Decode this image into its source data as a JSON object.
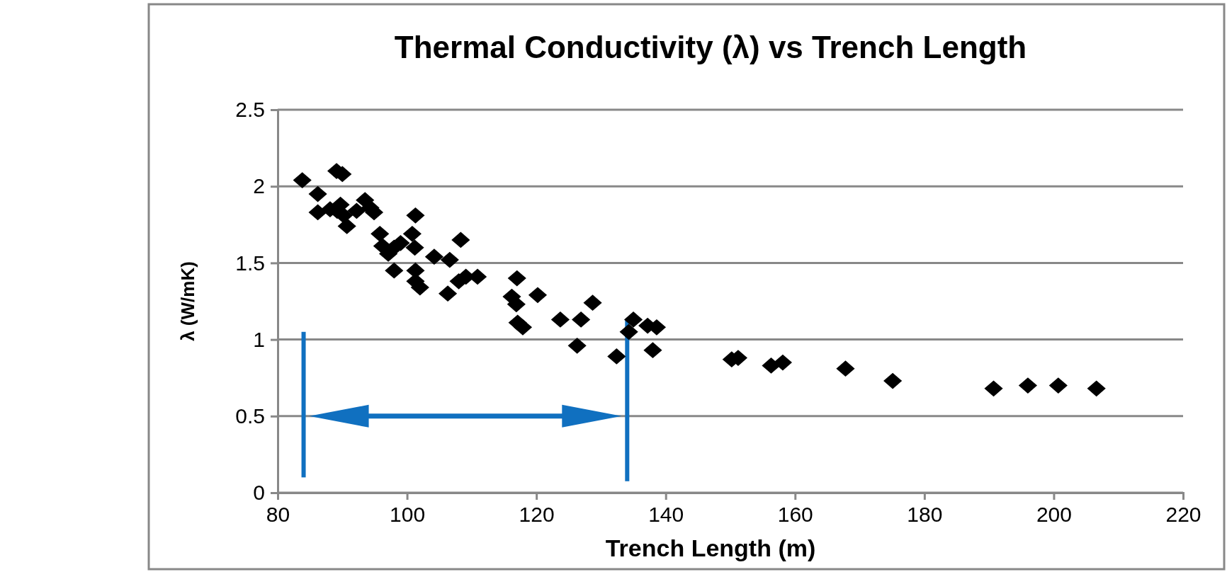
{
  "chart_data": {
    "type": "scatter",
    "title": "Thermal Conductivity (λ) vs Trench Length",
    "xlabel": "Trench Length (m)",
    "ylabel": "λ (W/mK)",
    "x": [
      83.8,
      86.2,
      86.2,
      88.1,
      89.1,
      90.0,
      89.7,
      89.2,
      90.7,
      90.2,
      92.2,
      93.5,
      94.3,
      94.9,
      95.8,
      96.2,
      97.1,
      98.0,
      98.0,
      99.0,
      100.8,
      101.3,
      101.2,
      101.3,
      101.3,
      102.0,
      104.2,
      106.6,
      106.3,
      108.3,
      108.0,
      109.1,
      110.9,
      116.2,
      117.0,
      116.9,
      117.1,
      117.9,
      120.2,
      123.7,
      126.3,
      126.9,
      128.7,
      132.4,
      134.3,
      135.0,
      137.2,
      138.0,
      138.6,
      150.2,
      151.2,
      156.3,
      158.1,
      167.8,
      175.1,
      190.7,
      196.0,
      200.7,
      206.6
    ],
    "series": [
      {
        "color": "#000000",
        "values": [
          2.04,
          1.95,
          1.83,
          1.85,
          2.1,
          2.08,
          1.88,
          1.84,
          1.74,
          1.81,
          1.84,
          1.91,
          1.86,
          1.83,
          1.69,
          1.61,
          1.56,
          1.45,
          1.6,
          1.63,
          1.69,
          1.81,
          1.6,
          1.45,
          1.38,
          1.34,
          1.54,
          1.52,
          1.3,
          1.65,
          1.38,
          1.41,
          1.41,
          1.28,
          1.4,
          1.23,
          1.11,
          1.08,
          1.29,
          1.13,
          0.96,
          1.13,
          1.24,
          0.89,
          1.05,
          1.13,
          1.09,
          0.93,
          1.08,
          0.87,
          0.88,
          0.83,
          0.85,
          0.81,
          0.73,
          0.68,
          0.7,
          0.7,
          0.68
        ]
      }
    ],
    "xlim": [
      80,
      220
    ],
    "xticks": [
      80,
      100,
      120,
      140,
      160,
      180,
      200,
      220
    ],
    "ylim": [
      0,
      2.5
    ],
    "yticks": [
      0,
      0.5,
      1,
      1.5,
      2,
      2.5
    ],
    "grid": "y",
    "marker": "diamond"
  }
}
